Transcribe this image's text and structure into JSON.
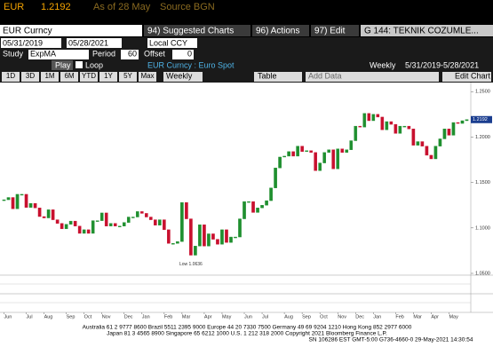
{
  "header": {
    "ticker": "EUR",
    "price": "1.2192",
    "as_of": "As of 28 May",
    "source": "Source BGN"
  },
  "toolbar": {
    "security": "EUR Curncy",
    "buttons": [
      "94) Suggested Charts",
      "96) Actions",
      "97) Edit"
    ],
    "page_title": "G 144: TEKNIK COZUMLE..."
  },
  "controls": {
    "start": "05/31/2019",
    "end": "05/28/2021",
    "currency": "Local CCY",
    "study_label": "Study",
    "study": "ExpMA",
    "period_label": "Period",
    "period": "60",
    "offset_label": "Offset",
    "offset": "0",
    "play": "Play",
    "loop": "Loop",
    "description": "EUR Curncy : Euro Spot",
    "frequency": "Weekly",
    "range": "5/31/2019-5/28/2021",
    "ranges": [
      "1D",
      "3D",
      "1M",
      "6M",
      "YTD",
      "1Y",
      "5Y",
      "Max"
    ],
    "frequency_select": "Weekly",
    "table": "Table",
    "add_data": "Add Data",
    "edit_chart": "Edit Chart"
  },
  "chart_data": {
    "type": "candlestick",
    "categories": [
      "Jun",
      null,
      null,
      null,
      null,
      "Jul",
      null,
      null,
      null,
      "Aug",
      null,
      null,
      null,
      null,
      "Sep",
      null,
      null,
      null,
      "Oct",
      null,
      null,
      null,
      "Nov",
      null,
      null,
      null,
      null,
      "Dec",
      null,
      null,
      null,
      "Jan",
      null,
      null,
      null,
      null,
      "Feb",
      null,
      null,
      null,
      "Mar",
      null,
      null,
      null,
      null,
      "Apr",
      null,
      null,
      null,
      "May",
      null,
      null,
      null,
      null,
      "Jun",
      null,
      null,
      null,
      "Jul",
      null,
      null,
      null,
      null,
      "Aug",
      null,
      null,
      null,
      "Sep",
      null,
      null,
      null,
      "Oct",
      null,
      null,
      null,
      "Nov",
      null,
      null,
      null,
      "Dec",
      null,
      null,
      null,
      "Jan",
      null,
      null,
      null,
      null,
      "Feb",
      null,
      null,
      null,
      "Mar",
      null,
      null,
      null,
      "Apr",
      null,
      null,
      null,
      "May",
      null,
      null,
      null,
      null
    ],
    "series": [
      {
        "name": "EUR Curncy",
        "values": [
          1.131,
          1.1335,
          1.121,
          1.137,
          1.137,
          1.1225,
          1.127,
          1.122,
          1.1125,
          1.111,
          1.12,
          1.109,
          1.105,
          1.099,
          1.104,
          1.1075,
          1.102,
          1.094,
          1.098,
          1.094,
          1.108,
          1.108,
          1.1165,
          1.102,
          1.105,
          1.102,
          1.102,
          1.106,
          1.112,
          1.112,
          1.118,
          1.116,
          1.112,
          1.109,
          1.103,
          1.109,
          1.098,
          1.083,
          1.083,
          1.085,
          1.128,
          1.11,
          1.07,
          1.08,
          1.1035,
          1.08,
          1.0935,
          1.0875,
          1.082,
          1.098,
          1.084,
          1.09,
          1.09,
          1.11,
          1.129,
          1.129,
          1.117,
          1.122,
          1.125,
          1.13,
          1.144,
          1.166,
          1.178,
          1.179,
          1.184,
          1.179,
          1.19,
          1.184,
          1.185,
          1.183,
          1.163,
          1.1715,
          1.183,
          1.186,
          1.165,
          1.187,
          1.183,
          1.186,
          1.196,
          1.212,
          1.211,
          1.226,
          1.218,
          1.225,
          1.222,
          1.208,
          1.217,
          1.214,
          1.204,
          1.212,
          1.212,
          1.209,
          1.191,
          1.195,
          1.19,
          1.18,
          1.176,
          1.19,
          1.198,
          1.209,
          1.202,
          1.216,
          1.215,
          1.218,
          1.2192
        ]
      }
    ],
    "ylim": [
      1.05,
      1.26
    ],
    "yticks": [
      {
        "value": 1.05,
        "label": "1.0500"
      },
      {
        "value": 1.1,
        "label": "1.1000"
      },
      {
        "value": 1.15,
        "label": "1.1500"
      },
      {
        "value": 1.2,
        "label": "1.2000"
      },
      {
        "value": 1.25,
        "label": "1.2500"
      }
    ],
    "annotation": "Low 1.0636",
    "last_value": {
      "value": 1.2192,
      "label": "1.2192"
    },
    "up_color": "#1f8f2f",
    "down_color": "#c8102e"
  },
  "footer": {
    "lines": [
      "Australia 61 2 9777 8600  Brazil 5511 2395 9000  Europe 44 20 7330 7500  Germany 49 69 9204 1210  Hong Kong 852 2977 6000",
      "Japan 81 3 4565 8900        Singapore 65 6212 1000        U.S. 1 212 318 2000        Copyright 2021 Bloomberg Finance L.P.",
      "SN 106286 EST  GMT-5:00 G736-4660-0 29-May-2021 14:30:54"
    ]
  }
}
